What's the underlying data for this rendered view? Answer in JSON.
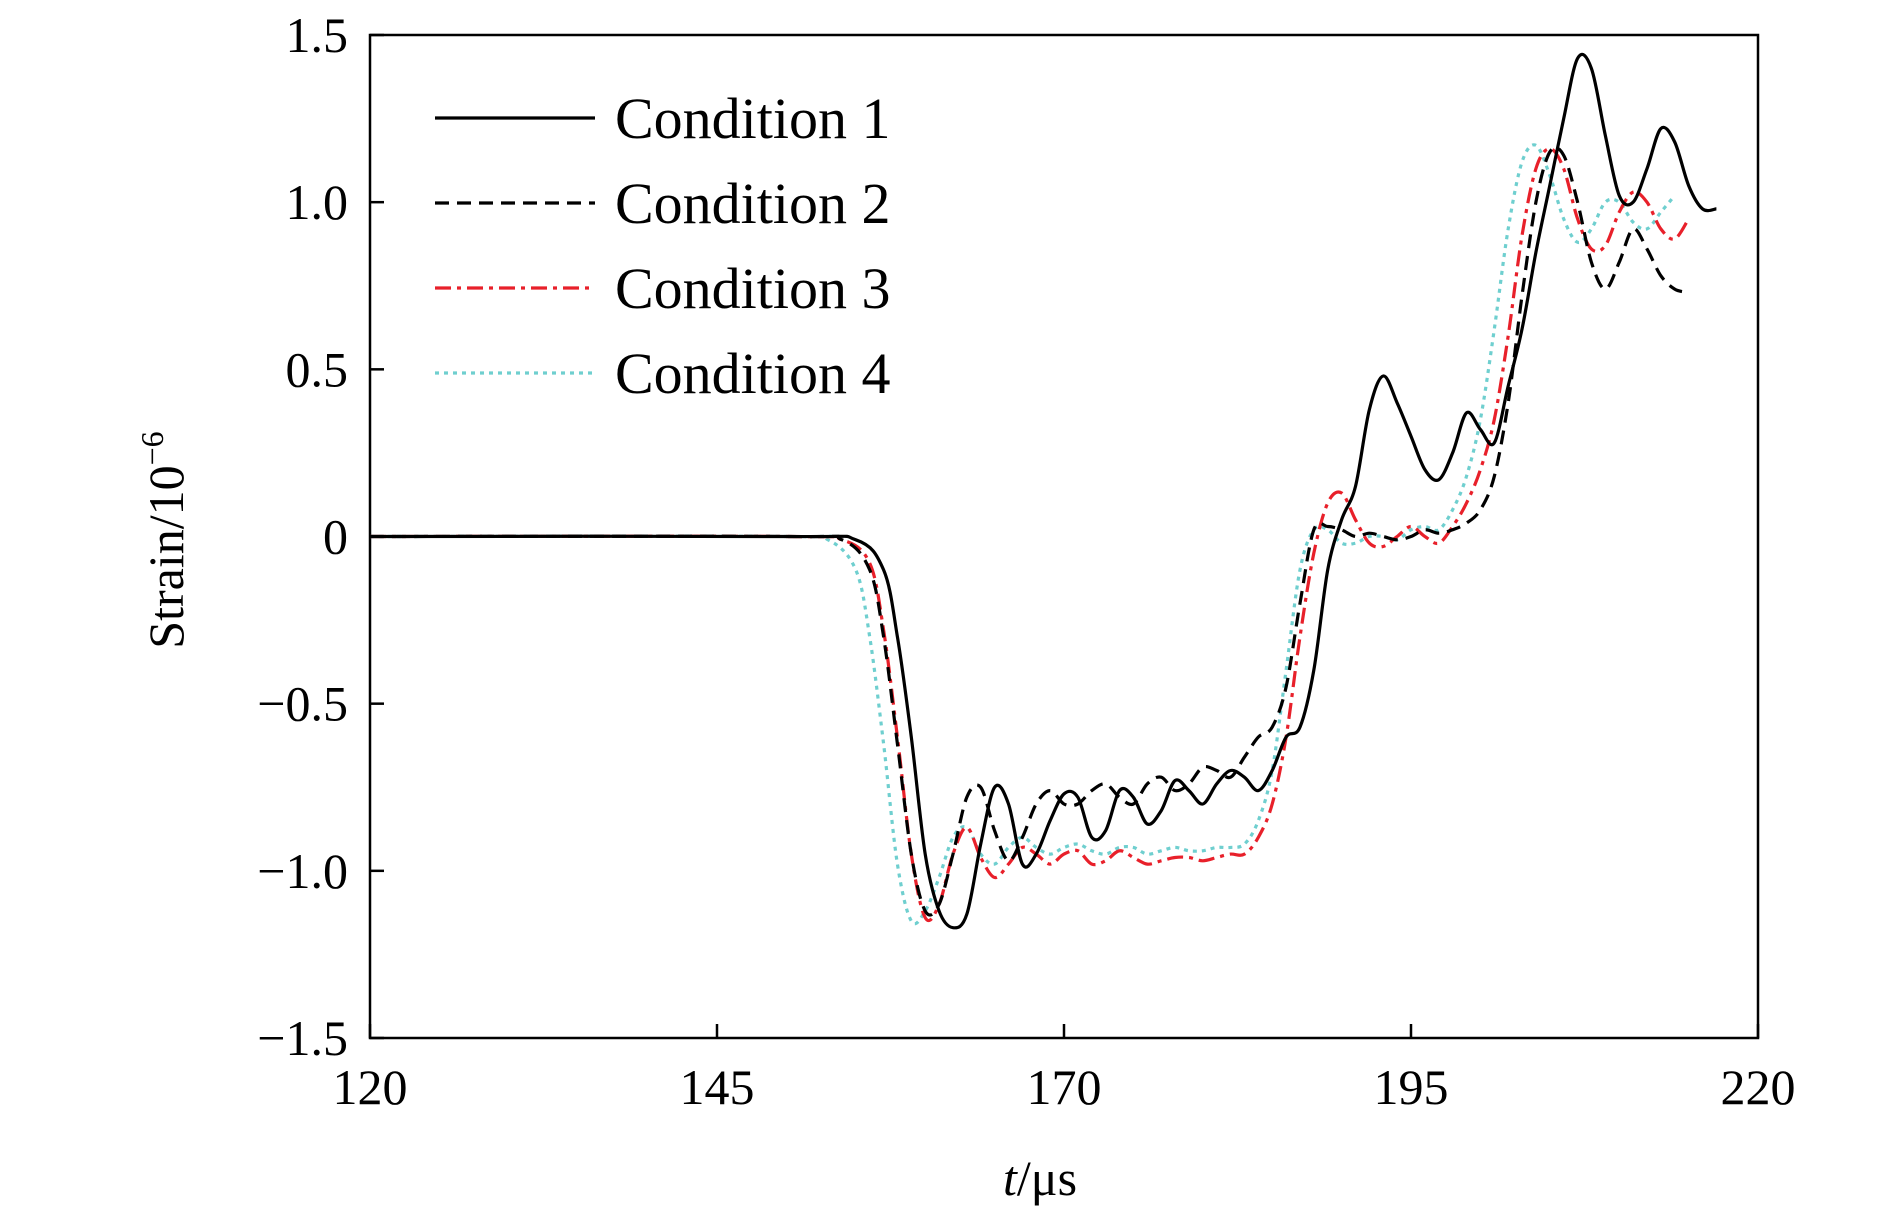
{
  "chart_data": {
    "type": "line",
    "title": "",
    "xlabel_italic": "t",
    "xlabel_rest": "/μs",
    "ylabel_main": "Strain/10",
    "ylabel_exp": "−6",
    "xlim": [
      120,
      220
    ],
    "ylim": [
      -1.5,
      1.5
    ],
    "xticks": [
      120,
      145,
      170,
      195,
      220
    ],
    "xtick_labels": [
      "120",
      "145",
      "170",
      "195",
      "220"
    ],
    "yticks": [
      1.5,
      1.0,
      0.5,
      0,
      -0.5,
      -1.0,
      -1.5
    ],
    "ytick_labels": [
      "1.5",
      "1.0",
      "0.5",
      "0",
      "−0.5",
      "−1.0",
      "−1.5"
    ],
    "grid": false,
    "legend_position": "top-left",
    "series": [
      {
        "name": "Condition 1",
        "color": "#000000",
        "dash": "solid",
        "points": [
          [
            120,
            0
          ],
          [
            150,
            0
          ],
          [
            155,
            -0.01
          ],
          [
            157,
            -0.1
          ],
          [
            158,
            -0.3
          ],
          [
            159,
            -0.6
          ],
          [
            160,
            -0.95
          ],
          [
            161,
            -1.12
          ],
          [
            162,
            -1.17
          ],
          [
            163,
            -1.13
          ],
          [
            164,
            -0.92
          ],
          [
            165,
            -0.75
          ],
          [
            166,
            -0.8
          ],
          [
            167,
            -0.98
          ],
          [
            168,
            -0.95
          ],
          [
            169,
            -0.85
          ],
          [
            170,
            -0.77
          ],
          [
            171,
            -0.78
          ],
          [
            172,
            -0.9
          ],
          [
            173,
            -0.88
          ],
          [
            174,
            -0.76
          ],
          [
            175,
            -0.78
          ],
          [
            176,
            -0.86
          ],
          [
            177,
            -0.82
          ],
          [
            178,
            -0.73
          ],
          [
            179,
            -0.76
          ],
          [
            180,
            -0.8
          ],
          [
            181,
            -0.74
          ],
          [
            182,
            -0.7
          ],
          [
            183,
            -0.72
          ],
          [
            184,
            -0.76
          ],
          [
            185,
            -0.7
          ],
          [
            186,
            -0.6
          ],
          [
            187,
            -0.57
          ],
          [
            188,
            -0.4
          ],
          [
            189,
            -0.1
          ],
          [
            190,
            0.05
          ],
          [
            191,
            0.15
          ],
          [
            192,
            0.38
          ],
          [
            193,
            0.48
          ],
          [
            194,
            0.4
          ],
          [
            195,
            0.3
          ],
          [
            196,
            0.2
          ],
          [
            197,
            0.17
          ],
          [
            198,
            0.25
          ],
          [
            199,
            0.37
          ],
          [
            200,
            0.32
          ],
          [
            201,
            0.28
          ],
          [
            202,
            0.45
          ],
          [
            203,
            0.62
          ],
          [
            204,
            0.85
          ],
          [
            205,
            1.05
          ],
          [
            206,
            1.25
          ],
          [
            207,
            1.43
          ],
          [
            208,
            1.4
          ],
          [
            209,
            1.2
          ],
          [
            210,
            1.02
          ],
          [
            211,
            1.0
          ],
          [
            212,
            1.1
          ],
          [
            213,
            1.22
          ],
          [
            214,
            1.18
          ],
          [
            215,
            1.05
          ],
          [
            216,
            0.98
          ],
          [
            217,
            0.98
          ]
        ]
      },
      {
        "name": "Condition 2",
        "color": "#000000",
        "dash": "dashed",
        "points": [
          [
            120,
            0
          ],
          [
            150,
            0
          ],
          [
            154,
            -0.01
          ],
          [
            156,
            -0.1
          ],
          [
            157,
            -0.3
          ],
          [
            158,
            -0.62
          ],
          [
            159,
            -0.95
          ],
          [
            160,
            -1.12
          ],
          [
            161,
            -1.1
          ],
          [
            162,
            -0.95
          ],
          [
            163,
            -0.78
          ],
          [
            164,
            -0.75
          ],
          [
            165,
            -0.88
          ],
          [
            166,
            -0.97
          ],
          [
            167,
            -0.9
          ],
          [
            168,
            -0.8
          ],
          [
            169,
            -0.76
          ],
          [
            170,
            -0.8
          ],
          [
            171,
            -0.8
          ],
          [
            172,
            -0.76
          ],
          [
            173,
            -0.74
          ],
          [
            174,
            -0.78
          ],
          [
            175,
            -0.8
          ],
          [
            176,
            -0.74
          ],
          [
            177,
            -0.72
          ],
          [
            178,
            -0.76
          ],
          [
            179,
            -0.74
          ],
          [
            180,
            -0.69
          ],
          [
            181,
            -0.7
          ],
          [
            182,
            -0.72
          ],
          [
            183,
            -0.66
          ],
          [
            184,
            -0.6
          ],
          [
            185,
            -0.57
          ],
          [
            186,
            -0.45
          ],
          [
            187,
            -0.2
          ],
          [
            188,
            0.02
          ],
          [
            189,
            0.03
          ],
          [
            190,
            0.02
          ],
          [
            191,
            0.0
          ],
          [
            192,
            0.01
          ],
          [
            193,
            0.0
          ],
          [
            194,
            -0.01
          ],
          [
            195,
            0.0
          ],
          [
            196,
            0.02
          ],
          [
            197,
            0.01
          ],
          [
            198,
            0.02
          ],
          [
            199,
            0.04
          ],
          [
            200,
            0.08
          ],
          [
            201,
            0.18
          ],
          [
            202,
            0.4
          ],
          [
            203,
            0.72
          ],
          [
            204,
            1.0
          ],
          [
            205,
            1.15
          ],
          [
            206,
            1.14
          ],
          [
            207,
            1.0
          ],
          [
            208,
            0.82
          ],
          [
            209,
            0.74
          ],
          [
            210,
            0.82
          ],
          [
            211,
            0.92
          ],
          [
            212,
            0.86
          ],
          [
            213,
            0.78
          ],
          [
            214,
            0.74
          ],
          [
            215,
            0.73
          ]
        ]
      },
      {
        "name": "Condition 3",
        "color": "#e8202a",
        "dash": "dashdot",
        "points": [
          [
            120,
            0
          ],
          [
            150,
            0
          ],
          [
            154,
            -0.01
          ],
          [
            156,
            -0.08
          ],
          [
            157,
            -0.28
          ],
          [
            158,
            -0.6
          ],
          [
            159,
            -0.95
          ],
          [
            160,
            -1.14
          ],
          [
            161,
            -1.1
          ],
          [
            162,
            -0.95
          ],
          [
            163,
            -0.87
          ],
          [
            164,
            -0.96
          ],
          [
            165,
            -1.02
          ],
          [
            166,
            -0.98
          ],
          [
            167,
            -0.93
          ],
          [
            168,
            -0.95
          ],
          [
            169,
            -0.98
          ],
          [
            170,
            -0.95
          ],
          [
            171,
            -0.94
          ],
          [
            172,
            -0.98
          ],
          [
            173,
            -0.97
          ],
          [
            174,
            -0.94
          ],
          [
            175,
            -0.96
          ],
          [
            176,
            -0.98
          ],
          [
            177,
            -0.97
          ],
          [
            178,
            -0.96
          ],
          [
            179,
            -0.96
          ],
          [
            180,
            -0.97
          ],
          [
            181,
            -0.96
          ],
          [
            182,
            -0.95
          ],
          [
            183,
            -0.95
          ],
          [
            184,
            -0.9
          ],
          [
            185,
            -0.8
          ],
          [
            186,
            -0.6
          ],
          [
            187,
            -0.3
          ],
          [
            188,
            -0.05
          ],
          [
            189,
            0.1
          ],
          [
            190,
            0.13
          ],
          [
            191,
            0.05
          ],
          [
            192,
            -0.02
          ],
          [
            193,
            -0.03
          ],
          [
            194,
            0.0
          ],
          [
            195,
            0.03
          ],
          [
            196,
            0.0
          ],
          [
            197,
            -0.02
          ],
          [
            198,
            0.03
          ],
          [
            199,
            0.1
          ],
          [
            200,
            0.2
          ],
          [
            201,
            0.35
          ],
          [
            202,
            0.6
          ],
          [
            203,
            0.9
          ],
          [
            204,
            1.1
          ],
          [
            205,
            1.16
          ],
          [
            206,
            1.1
          ],
          [
            207,
            0.95
          ],
          [
            208,
            0.86
          ],
          [
            209,
            0.87
          ],
          [
            210,
            0.97
          ],
          [
            211,
            1.03
          ],
          [
            212,
            1.0
          ],
          [
            213,
            0.92
          ],
          [
            214,
            0.89
          ],
          [
            215,
            0.95
          ]
        ]
      },
      {
        "name": "Condition 4",
        "color": "#6fcfcf",
        "dash": "dotted",
        "points": [
          [
            120,
            0
          ],
          [
            150,
            0
          ],
          [
            153,
            -0.01
          ],
          [
            155,
            -0.1
          ],
          [
            156,
            -0.3
          ],
          [
            157,
            -0.62
          ],
          [
            158,
            -0.98
          ],
          [
            159,
            -1.15
          ],
          [
            160,
            -1.12
          ],
          [
            161,
            -1.02
          ],
          [
            162,
            -0.9
          ],
          [
            163,
            -0.87
          ],
          [
            164,
            -0.95
          ],
          [
            165,
            -0.98
          ],
          [
            166,
            -0.93
          ],
          [
            167,
            -0.9
          ],
          [
            168,
            -0.93
          ],
          [
            169,
            -0.95
          ],
          [
            170,
            -0.93
          ],
          [
            171,
            -0.92
          ],
          [
            172,
            -0.94
          ],
          [
            173,
            -0.95
          ],
          [
            174,
            -0.93
          ],
          [
            175,
            -0.93
          ],
          [
            176,
            -0.95
          ],
          [
            177,
            -0.94
          ],
          [
            178,
            -0.93
          ],
          [
            179,
            -0.94
          ],
          [
            180,
            -0.94
          ],
          [
            181,
            -0.93
          ],
          [
            182,
            -0.93
          ],
          [
            183,
            -0.92
          ],
          [
            184,
            -0.85
          ],
          [
            185,
            -0.7
          ],
          [
            186,
            -0.4
          ],
          [
            187,
            -0.1
          ],
          [
            188,
            0.02
          ],
          [
            189,
            0.02
          ],
          [
            190,
            -0.02
          ],
          [
            191,
            -0.02
          ],
          [
            192,
            0.0
          ],
          [
            193,
            0.0
          ],
          [
            194,
            -0.01
          ],
          [
            195,
            0.02
          ],
          [
            196,
            0.03
          ],
          [
            197,
            0.02
          ],
          [
            198,
            0.08
          ],
          [
            199,
            0.18
          ],
          [
            200,
            0.35
          ],
          [
            201,
            0.62
          ],
          [
            202,
            0.92
          ],
          [
            203,
            1.12
          ],
          [
            204,
            1.17
          ],
          [
            205,
            1.08
          ],
          [
            206,
            0.95
          ],
          [
            207,
            0.88
          ],
          [
            208,
            0.92
          ],
          [
            209,
            1.0
          ],
          [
            210,
            1.0
          ],
          [
            211,
            0.94
          ],
          [
            212,
            0.92
          ],
          [
            213,
            0.97
          ],
          [
            214,
            1.02
          ]
        ]
      }
    ]
  }
}
